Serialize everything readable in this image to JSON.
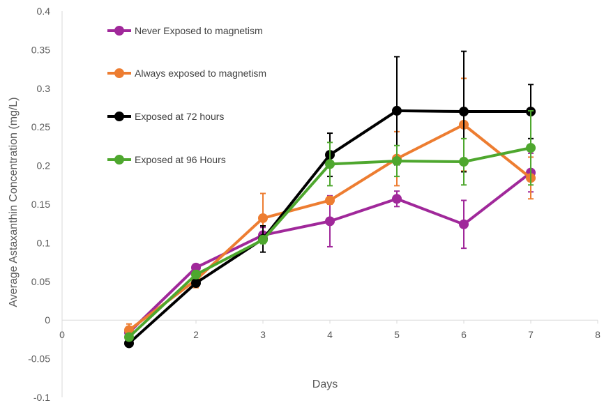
{
  "chart_data": {
    "type": "line",
    "xlabel": "Days",
    "ylabel": "Average Astaxanthin Concentration (mg/L)",
    "xlim": [
      0,
      8
    ],
    "ylim": [
      -0.1,
      0.4
    ],
    "x_ticks": [
      "0",
      "2",
      "3",
      "4",
      "5",
      "6",
      "7",
      "8"
    ],
    "y_ticks": [
      "-0.1",
      "-0.05",
      "0",
      "0.05",
      "0.1",
      "0.15",
      "0.2",
      "0.25",
      "0.3",
      "0.35",
      "0.4"
    ],
    "grid": false,
    "legend_position": "top-left",
    "x": [
      1,
      2,
      3,
      4,
      5,
      6,
      7
    ],
    "series": [
      {
        "name": "Never Exposed to magnetism",
        "color": "#A0289A",
        "values": [
          -0.016,
          0.068,
          0.11,
          0.128,
          0.157,
          0.124,
          0.191
        ],
        "errors": [
          0.004,
          0.004,
          0.01,
          0.033,
          0.01,
          0.031,
          0.025
        ]
      },
      {
        "name": "Always exposed to magnetism",
        "color": "#ED7D31",
        "values": [
          -0.013,
          0.052,
          0.132,
          0.155,
          0.209,
          0.253,
          0.184
        ],
        "errors": [
          0.008,
          0.01,
          0.032,
          0.005,
          0.035,
          0.06,
          0.027
        ]
      },
      {
        "name": "Exposed at 72 hours",
        "color": "#000000",
        "values": [
          -0.03,
          0.048,
          0.105,
          0.214,
          0.271,
          0.27,
          0.27
        ],
        "errors": [
          0.003,
          0.004,
          0.017,
          0.028,
          0.07,
          0.078,
          0.035
        ]
      },
      {
        "name": "Exposed at 96 Hours",
        "color": "#4EA72E",
        "values": [
          -0.022,
          0.059,
          0.104,
          0.202,
          0.206,
          0.205,
          0.223
        ],
        "errors": [
          0.003,
          0.005,
          0.005,
          0.028,
          0.02,
          0.03,
          0.048
        ]
      }
    ]
  }
}
